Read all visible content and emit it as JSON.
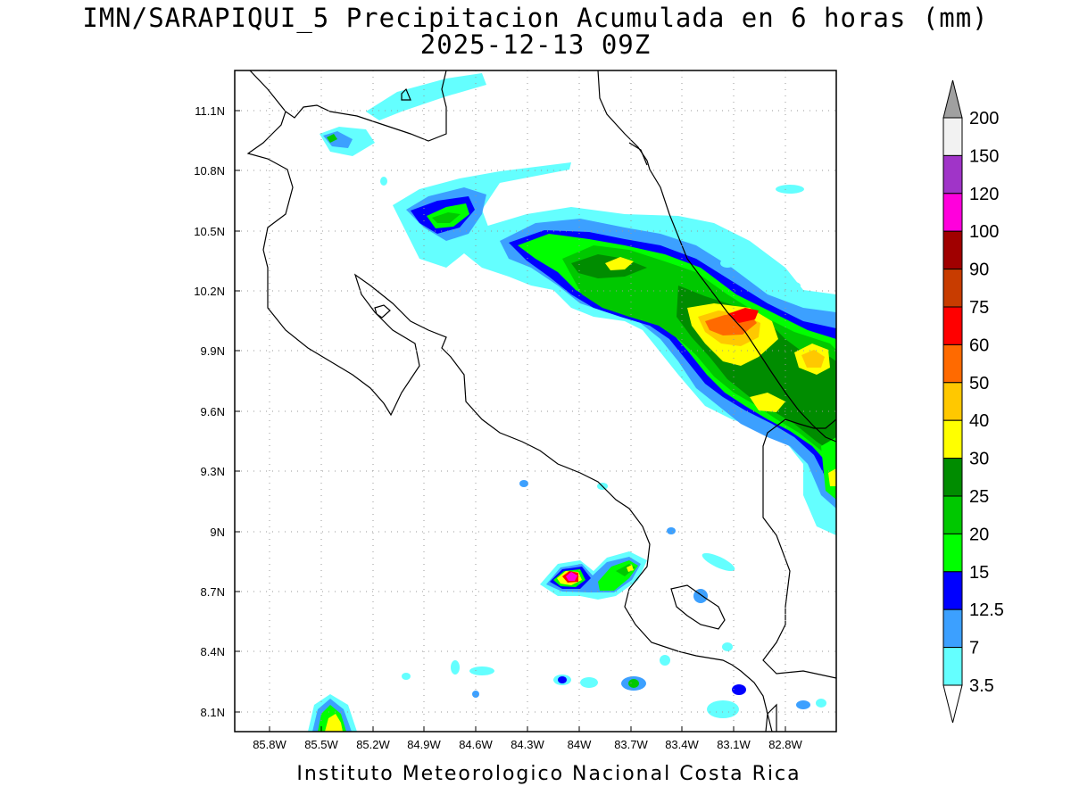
{
  "title": {
    "line1": "IMN/SARAPIQUI_5 Precipitacion Acumulada en 6 horas (mm)",
    "line2": "2025-12-13 09Z"
  },
  "footer": "Instituto Meteorologico Nacional Costa Rica",
  "lat_labels": [
    "11.1N",
    "10.8N",
    "10.5N",
    "10.2N",
    "9.9N",
    "9.6N",
    "9.3N",
    "9N",
    "8.7N",
    "8.4N",
    "8.1N"
  ],
  "lon_labels": [
    "85.8W",
    "85.5W",
    "85.2W",
    "84.9W",
    "84.6W",
    "84.3W",
    "84W",
    "83.7W",
    "83.4W",
    "83.1W",
    "82.8W"
  ],
  "colorbar": {
    "labels": [
      "200",
      "150",
      "120",
      "100",
      "90",
      "75",
      "60",
      "50",
      "40",
      "30",
      "25",
      "20",
      "15",
      "12.5",
      "7",
      "3.5"
    ],
    "colors": [
      "#f2f2f2",
      "#a034c8",
      "#ff00dc",
      "#a00000",
      "#c83c00",
      "#ff0000",
      "#ff6a00",
      "#ffc800",
      "#ffff00",
      "#008c00",
      "#00c800",
      "#00ff00",
      "#0000ff",
      "#3ca0ff",
      "#64ffff"
    ],
    "above_color": "#a0a0a0"
  }
}
